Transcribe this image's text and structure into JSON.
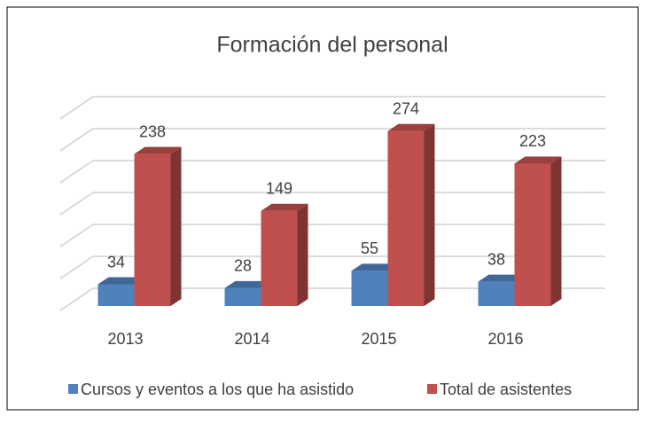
{
  "chart_data": {
    "type": "bar3d",
    "title": "Formación del personal",
    "categories": [
      "2013",
      "2014",
      "2015",
      "2016"
    ],
    "series": [
      {
        "name": "Cursos y eventos a los que ha asistido",
        "color": "#4f81bd",
        "values": [
          34,
          28,
          55,
          38
        ]
      },
      {
        "name": "Total de asistentes",
        "color": "#c0504d",
        "values": [
          238,
          149,
          274,
          223
        ]
      }
    ],
    "ylim": [
      0,
      300
    ],
    "yticks": [
      0,
      50,
      100,
      150,
      200,
      250,
      300
    ],
    "grid": true,
    "legend": "bottom"
  }
}
